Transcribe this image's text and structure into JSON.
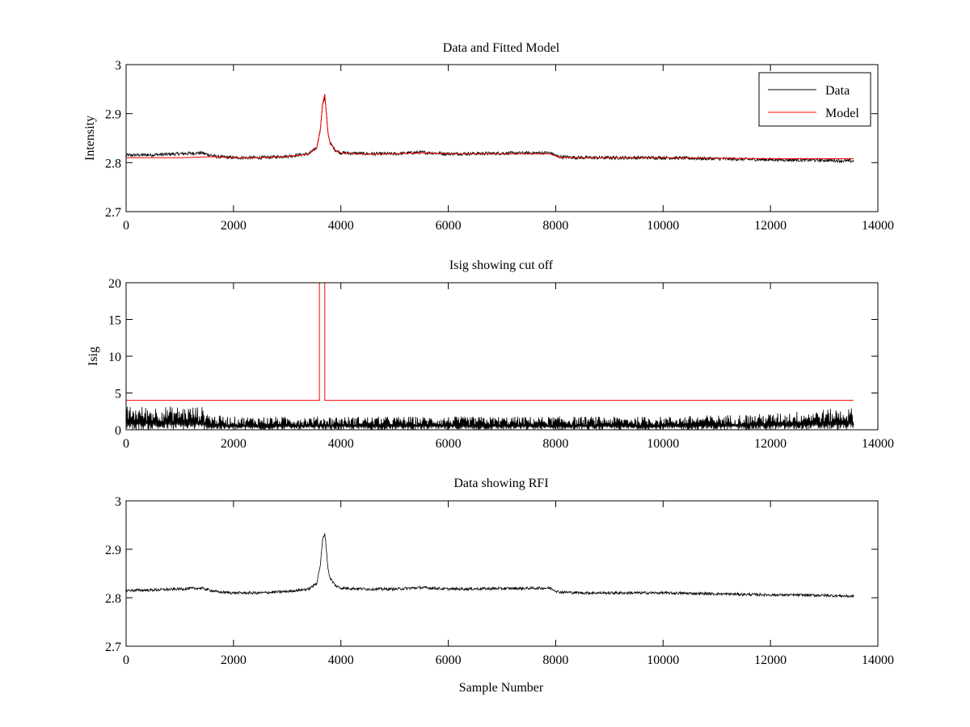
{
  "chart_data": [
    {
      "type": "line",
      "title": "Data and Fitted Model",
      "xlabel": "",
      "ylabel": "Intensity",
      "xlim": [
        0,
        14000
      ],
      "ylim": [
        2.7,
        3.0
      ],
      "xticks": [
        0,
        2000,
        4000,
        6000,
        8000,
        10000,
        12000,
        14000
      ],
      "yticks": [
        2.7,
        2.8,
        2.9,
        3.0
      ],
      "xtick_labels": [
        "0",
        "2000",
        "4000",
        "6000",
        "8000",
        "10000",
        "12000",
        "14000"
      ],
      "ytick_labels": [
        "2.7",
        "2.8",
        "2.9",
        "3"
      ],
      "legend": {
        "placement": "top-right",
        "entries": [
          "Data",
          "Model"
        ]
      },
      "series": [
        {
          "name": "Data",
          "color": "#000000",
          "style": "noisy",
          "noise": 0.0035,
          "x": [
            0,
            500,
            1000,
            1400,
            1700,
            2000,
            2500,
            3000,
            3400,
            3550,
            3620,
            3660,
            3700,
            3730,
            3760,
            3800,
            3900,
            4000,
            4500,
            5000,
            5500,
            6000,
            7000,
            7900,
            8050,
            8500,
            9000,
            10000,
            11000,
            12000,
            13000,
            13550
          ],
          "y": [
            2.815,
            2.816,
            2.818,
            2.82,
            2.812,
            2.81,
            2.81,
            2.813,
            2.818,
            2.83,
            2.87,
            2.92,
            2.933,
            2.9,
            2.86,
            2.84,
            2.825,
            2.82,
            2.818,
            2.818,
            2.821,
            2.818,
            2.819,
            2.82,
            2.812,
            2.81,
            2.81,
            2.81,
            2.808,
            2.806,
            2.805,
            2.803
          ]
        },
        {
          "name": "Model",
          "color": "#ff0000",
          "style": "line",
          "x": [
            0,
            1000,
            1600,
            2000,
            2500,
            3000,
            3400,
            3550,
            3620,
            3660,
            3700,
            3730,
            3760,
            3800,
            3900,
            4000,
            4500,
            5000,
            5500,
            6000,
            7000,
            7900,
            8050,
            8500,
            9000,
            10000,
            11000,
            12000,
            13000,
            13550
          ],
          "y": [
            2.81,
            2.81,
            2.812,
            2.81,
            2.81,
            2.813,
            2.817,
            2.83,
            2.87,
            2.92,
            2.94,
            2.9,
            2.86,
            2.84,
            2.825,
            2.82,
            2.817,
            2.818,
            2.82,
            2.818,
            2.818,
            2.818,
            2.811,
            2.81,
            2.81,
            2.81,
            2.809,
            2.808,
            2.808,
            2.808
          ]
        }
      ]
    },
    {
      "type": "line",
      "title": "Isig showing cut off",
      "xlabel": "",
      "ylabel": "Isig",
      "xlim": [
        0,
        14000
      ],
      "ylim": [
        0,
        20
      ],
      "xticks": [
        0,
        2000,
        4000,
        6000,
        8000,
        10000,
        12000,
        14000
      ],
      "yticks": [
        0,
        5,
        10,
        15,
        20
      ],
      "xtick_labels": [
        "0",
        "2000",
        "4000",
        "6000",
        "8000",
        "10000",
        "12000",
        "14000"
      ],
      "ytick_labels": [
        "0",
        "5",
        "10",
        "15",
        "20"
      ],
      "series": [
        {
          "name": "Isig",
          "color": "#000000",
          "style": "spiky",
          "x": [
            0,
            1400,
            1600,
            2000,
            4000,
            6000,
            8000,
            10000,
            12000,
            13000,
            13550
          ],
          "y": [
            3.2,
            3.2,
            2.0,
            1.8,
            1.8,
            1.8,
            1.8,
            1.8,
            2.2,
            2.8,
            3.0
          ]
        },
        {
          "name": "Cut off",
          "color": "#ff0000",
          "style": "line",
          "x": [
            0,
            3600,
            3600,
            3700,
            3700,
            13550
          ],
          "y": [
            4,
            4,
            20,
            20,
            4,
            4
          ]
        }
      ]
    },
    {
      "type": "line",
      "title": "Data showing RFI",
      "xlabel": "Sample Number",
      "ylabel": "",
      "xlim": [
        0,
        14000
      ],
      "ylim": [
        2.7,
        3.0
      ],
      "xticks": [
        0,
        2000,
        4000,
        6000,
        8000,
        10000,
        12000,
        14000
      ],
      "yticks": [
        2.7,
        2.8,
        2.9,
        3.0
      ],
      "xtick_labels": [
        "0",
        "2000",
        "4000",
        "6000",
        "8000",
        "10000",
        "12000",
        "14000"
      ],
      "ytick_labels": [
        "2.7",
        "2.8",
        "2.9",
        "3"
      ],
      "series": [
        {
          "name": "Data",
          "color": "#000000",
          "style": "noisy",
          "noise": 0.0028,
          "x": [
            0,
            500,
            1000,
            1400,
            1700,
            2000,
            2500,
            3000,
            3400,
            3550,
            3620,
            3660,
            3700,
            3730,
            3760,
            3800,
            3900,
            4000,
            4500,
            5000,
            5500,
            6000,
            7000,
            7900,
            8050,
            8500,
            9000,
            10000,
            11000,
            12000,
            13000,
            13550
          ],
          "y": [
            2.815,
            2.816,
            2.818,
            2.82,
            2.812,
            2.81,
            2.81,
            2.813,
            2.818,
            2.83,
            2.87,
            2.92,
            2.933,
            2.9,
            2.86,
            2.84,
            2.825,
            2.82,
            2.818,
            2.818,
            2.821,
            2.818,
            2.819,
            2.82,
            2.812,
            2.81,
            2.81,
            2.81,
            2.808,
            2.806,
            2.805,
            2.803
          ]
        }
      ]
    }
  ]
}
